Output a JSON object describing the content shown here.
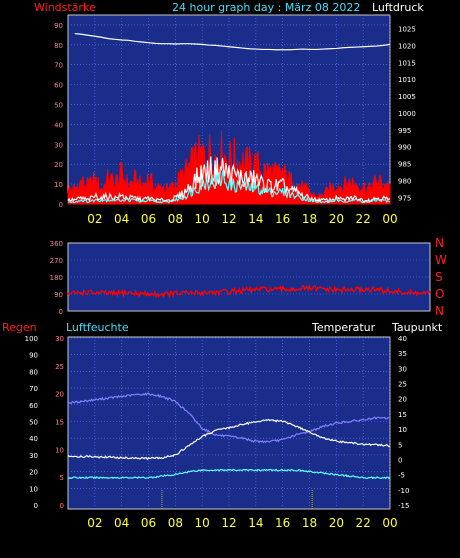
{
  "colors": {
    "background": "#000000",
    "plot_fill": "#1a2d8a",
    "grid": "#5c7cff",
    "frame": "#c8c8c8",
    "red_label": "#ff2020",
    "cyan_label": "#40e0ff",
    "white_label": "#ffffff",
    "x_tick": "#ffff40",
    "wind_gust": "#ff0000",
    "wind_avg": "#ffffff",
    "wind_inner": "#60ffff",
    "pressure_line": "#ffffff",
    "direction_line": "#ff0000",
    "humidity_line": "#8080ff",
    "temperature_line": "#ffffff",
    "dewpoint_line": "#60ffff",
    "rain_marker": "#c0c000"
  },
  "header": {
    "title": "24 hour graph day : März 08 2022"
  },
  "chart_data": [
    {
      "type": "area",
      "id": "wind",
      "left_label": "Windstärke",
      "right_label": "Luftdruck",
      "left_ticks": [
        "0",
        "10",
        "20",
        "30",
        "40",
        "50",
        "60",
        "70",
        "80",
        "90"
      ],
      "right_ticks": [
        "975",
        "980",
        "985",
        "990",
        "995",
        "1000",
        "1005",
        "1010",
        "1015",
        "1020",
        "1025"
      ],
      "ylim_left": [
        0,
        95
      ],
      "ylim_right": [
        973,
        1029
      ],
      "x_hours": [
        0.5,
        1,
        1.5,
        2,
        2.5,
        3,
        3.5,
        4,
        4.5,
        5,
        5.5,
        6,
        6.5,
        7,
        7.5,
        8,
        8.5,
        9,
        9.5,
        10,
        10.5,
        11,
        11.5,
        12,
        12.5,
        13,
        13.5,
        14,
        14.5,
        15,
        15.5,
        16,
        16.5,
        17,
        17.5,
        18,
        18.5,
        19,
        19.5,
        20,
        20.5,
        21,
        21.5,
        22,
        22.5,
        23,
        23.5,
        24
      ],
      "series": [
        {
          "values": [
            10,
            15,
            12,
            16,
            10,
            17,
            14,
            20,
            13,
            16,
            12,
            18,
            10,
            12,
            9,
            14,
            18,
            24,
            30,
            33,
            35,
            32,
            35,
            30,
            31,
            28,
            27,
            26,
            23,
            22,
            20,
            21,
            16,
            14,
            11,
            8,
            5,
            6,
            10,
            13,
            12,
            15,
            14,
            12,
            10,
            15,
            14,
            13
          ]
        },
        {
          "values": [
            2,
            3,
            2,
            4,
            3,
            4,
            3,
            4,
            3,
            3,
            2,
            3,
            2,
            2,
            2,
            3,
            5,
            8,
            12,
            15,
            17,
            16,
            18,
            15,
            14,
            13,
            12,
            12,
            10,
            9,
            9,
            9,
            7,
            6,
            4,
            3,
            2,
            2,
            2,
            3,
            2,
            3,
            3,
            2,
            2,
            3,
            3,
            2
          ]
        },
        {
          "values": [
            1,
            2,
            1,
            2,
            2,
            2,
            2,
            2,
            2,
            2,
            1,
            2,
            1,
            1,
            1,
            2,
            3,
            5,
            8,
            10,
            12,
            11,
            13,
            10,
            9,
            9,
            8,
            8,
            7,
            6,
            6,
            6,
            5,
            4,
            3,
            2,
            1,
            1,
            1,
            2,
            1,
            2,
            2,
            1,
            1,
            2,
            2,
            1
          ]
        },
        {
          "values": [
            1023.5,
            1023.3,
            1023,
            1022.7,
            1022.4,
            1022,
            1021.8,
            1021.6,
            1021.5,
            1021.2,
            1021,
            1020.8,
            1020.6,
            1020.5,
            1020.5,
            1020.4,
            1020.5,
            1020.5,
            1020.4,
            1020.3,
            1020.1,
            1020,
            1019.8,
            1019.6,
            1019.4,
            1019.2,
            1019,
            1018.9,
            1018.8,
            1018.8,
            1018.7,
            1018.7,
            1018.7,
            1018.8,
            1018.9,
            1018.8,
            1018.8,
            1018.9,
            1019,
            1019.1,
            1019.3,
            1019.4,
            1019.5,
            1019.6,
            1019.7,
            1019.8,
            1020,
            1020.3
          ]
        }
      ],
      "x_ticks": [
        "02",
        "04",
        "06",
        "08",
        "10",
        "12",
        "14",
        "16",
        "18",
        "20",
        "22",
        "00"
      ]
    },
    {
      "type": "line",
      "id": "direction",
      "left_ticks": [
        "0",
        "90",
        "180",
        "270",
        "360"
      ],
      "right_ticks": [
        "N",
        "O",
        "S",
        "W",
        "N"
      ],
      "ylim": [
        0,
        360
      ],
      "x_hours": [
        0,
        1,
        2,
        3,
        4,
        5,
        6,
        7,
        8,
        9,
        10,
        11,
        12,
        13,
        14,
        15,
        16,
        17,
        18,
        19,
        20,
        21,
        22,
        23,
        24
      ],
      "series": [
        {
          "values": [
            90,
            100,
            95,
            92,
            97,
            90,
            88,
            92,
            95,
            98,
            100,
            105,
            110,
            115,
            112,
            118,
            120,
            115,
            110,
            112,
            115,
            108,
            100,
            95,
            92
          ]
        }
      ]
    },
    {
      "type": "line",
      "id": "temperature",
      "left_label": "Regen",
      "left2_label": "Luftfeuchte",
      "right_label": "Temperatur",
      "right2_label": "Taupunkt",
      "left_ticks": [
        "0",
        "10",
        "20",
        "30",
        "40",
        "50",
        "60",
        "70",
        "80",
        "90",
        "100"
      ],
      "left2_ticks": [
        "0",
        "5",
        "10",
        "15",
        "20",
        "25",
        "30"
      ],
      "right_ticks": [
        "-15",
        "-10",
        "-5",
        "0",
        "5",
        "10",
        "15",
        "20",
        "25",
        "30",
        "35",
        "40"
      ],
      "ylim_right": [
        -15,
        40
      ],
      "x_hours": [
        0,
        1,
        2,
        3,
        4,
        5,
        6,
        7,
        8,
        9,
        10,
        11,
        12,
        13,
        14,
        15,
        16,
        17,
        18,
        19,
        20,
        21,
        22,
        23,
        24
      ],
      "series": [
        {
          "values": [
            61,
            62,
            63,
            64,
            65,
            66,
            66.5,
            65,
            62,
            55,
            46,
            42,
            41,
            40,
            38,
            38,
            39,
            42,
            44,
            47,
            49,
            50,
            51,
            52,
            52
          ]
        },
        {
          "values": [
            1,
            1,
            0.8,
            0.8,
            0.5,
            0.5,
            0.3,
            0.5,
            1.5,
            4.5,
            7.5,
            9.5,
            10.5,
            11.5,
            12.5,
            13,
            12.5,
            11,
            9,
            7,
            6,
            5.5,
            5,
            4.8,
            4.5
          ]
        },
        {
          "values": [
            -6,
            -6,
            -6,
            -6,
            -6,
            -6,
            -6,
            -5.5,
            -5,
            -4,
            -3.5,
            -3.5,
            -3.5,
            -3.5,
            -3.5,
            -3.5,
            -3.5,
            -3.5,
            -4,
            -4.5,
            -5,
            -5.5,
            -6,
            -6,
            -6
          ]
        }
      ],
      "rain_marks_hours": [
        7,
        18.2
      ],
      "x_ticks": [
        "02",
        "04",
        "06",
        "08",
        "10",
        "12",
        "14",
        "16",
        "18",
        "20",
        "22",
        "00"
      ]
    }
  ]
}
